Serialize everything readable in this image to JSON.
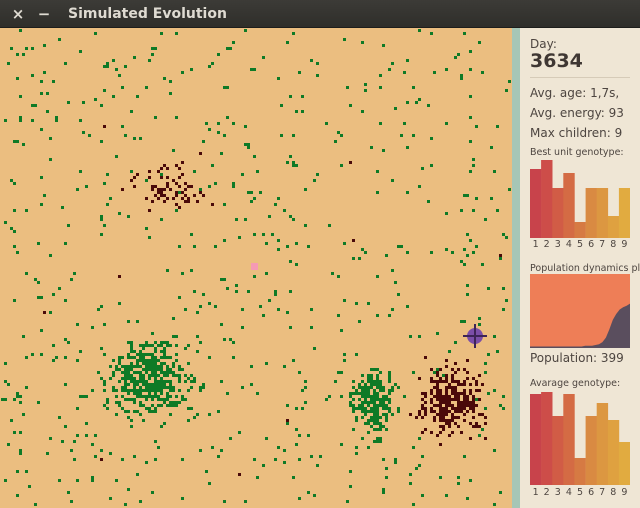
{
  "window": {
    "title": "Simulated Evolution",
    "close_glyph": "×",
    "minimize_glyph": "−"
  },
  "world": {
    "background": "#ebbe80",
    "plant_color": "#0f7a26",
    "creature_color": "#4a0a0a",
    "food_color": "#f59ab4",
    "selected_unit_color": "#7b4ea8"
  },
  "stats": {
    "day_label": "Day:",
    "day_value": "3634",
    "avg_age": "Avg. age: 1,7s,",
    "avg_energy": "Avg. energy: 93",
    "max_children": "Max children: 9",
    "population": "Population: 399"
  },
  "best_genotype": {
    "title": "Best unit genotype:",
    "genes": [
      "1",
      "2",
      "3",
      "4",
      "5",
      "6",
      "7",
      "8",
      "9"
    ],
    "values": [
      0.86,
      0.97,
      0.62,
      0.81,
      0.2,
      0.62,
      0.62,
      0.27,
      0.62
    ]
  },
  "population_plot": {
    "title": "Population dynamics plot",
    "fill_color": "#ee7e57",
    "overlay_color": "#5a4e5e",
    "series": [
      0.02,
      0.02,
      0.02,
      0.02,
      0.02,
      0.02,
      0.02,
      0.02,
      0.02,
      0.02,
      0.02,
      0.02,
      0.02,
      0.02,
      0.02,
      0.02,
      0.03,
      0.03,
      0.03,
      0.04,
      0.05,
      0.08,
      0.14,
      0.25,
      0.38,
      0.46,
      0.52,
      0.55,
      0.57,
      0.6
    ]
  },
  "average_genotype": {
    "title": "Avarage genotype:",
    "genes": [
      "1",
      "2",
      "3",
      "4",
      "5",
      "6",
      "7",
      "8",
      "9"
    ],
    "values": [
      0.95,
      0.97,
      0.72,
      0.95,
      0.28,
      0.72,
      0.85,
      0.68,
      0.45
    ]
  },
  "bar_colors": [
    "#c8434b",
    "#cd4d49",
    "#d15c46",
    "#d46b44",
    "#d67a43",
    "#d98a42",
    "#dc9741",
    "#dfa140",
    "#e1ab40"
  ]
}
